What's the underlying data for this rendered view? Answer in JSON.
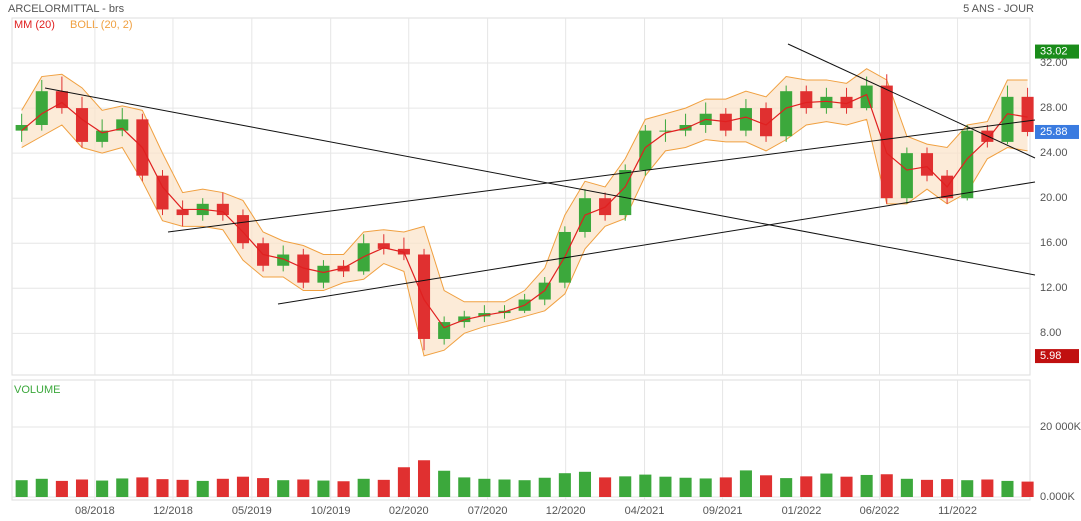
{
  "chart_data": {
    "type": "candlestick",
    "title": "ARCELORMITTAL - brs",
    "period": "5 ANS - JOUR",
    "indicators": [
      {
        "name": "MM (20)",
        "color": "#e02020"
      },
      {
        "name": "BOLL (20, 2)",
        "color": "#f0a040"
      }
    ],
    "xlim": [
      0,
      1265
    ],
    "xticks": [
      {
        "value": 103,
        "label": "08/2018"
      },
      {
        "value": 200,
        "label": "12/2018"
      },
      {
        "value": 298,
        "label": "05/2019"
      },
      {
        "value": 396,
        "label": "10/2019"
      },
      {
        "value": 493,
        "label": "02/2020"
      },
      {
        "value": 591,
        "label": "07/2020"
      },
      {
        "value": 688,
        "label": "12/2020"
      },
      {
        "value": 786,
        "label": "04/2021"
      },
      {
        "value": 883,
        "label": "09/2021"
      },
      {
        "value": 981,
        "label": "01/2022"
      },
      {
        "value": 1078,
        "label": "06/2022"
      },
      {
        "value": 1175,
        "label": "11/2022"
      }
    ],
    "ylim": [
      4.3,
      36
    ],
    "yticks": [
      {
        "value": 8,
        "label": "8.00"
      },
      {
        "value": 12,
        "label": "12.00"
      },
      {
        "value": 16,
        "label": "16.00"
      },
      {
        "value": 20,
        "label": "20.00"
      },
      {
        "value": 24,
        "label": "24.00"
      },
      {
        "value": 28,
        "label": "28.00"
      },
      {
        "value": 32,
        "label": "32.00"
      }
    ],
    "grid": true,
    "up_color": "#3ca83c",
    "down_color": "#e03030",
    "candles": {
      "x": [
        12,
        37,
        62,
        87,
        112,
        137,
        162,
        187,
        212,
        237,
        262,
        287,
        312,
        337,
        362,
        387,
        412,
        437,
        462,
        487,
        512,
        537,
        562,
        587,
        612,
        637,
        662,
        687,
        712,
        737,
        762,
        787,
        812,
        837,
        862,
        887,
        912,
        937,
        962,
        987,
        1012,
        1037,
        1062,
        1087,
        1112,
        1137,
        1162,
        1187,
        1212,
        1237,
        1262
      ],
      "open": [
        26,
        26.5,
        29.5,
        28,
        25,
        26,
        27,
        22,
        19,
        18.5,
        19.5,
        18.5,
        16,
        14,
        15,
        12.5,
        14,
        13.5,
        16,
        15.5,
        15,
        7.5,
        9,
        9.5,
        9.8,
        10,
        11,
        12.5,
        17,
        20,
        18.5,
        22.5,
        26,
        26,
        26.5,
        27.5,
        26,
        28,
        25.5,
        29.5,
        28,
        29,
        28,
        30,
        20,
        24,
        22,
        20,
        26,
        25,
        29
      ],
      "high": [
        27.5,
        30.5,
        30.8,
        29,
        27,
        28,
        27.5,
        22.5,
        19.8,
        20,
        20.5,
        19,
        16.5,
        15.8,
        15.5,
        14.5,
        14.5,
        16.8,
        16.8,
        16.5,
        15.5,
        9.5,
        10,
        10.5,
        10.5,
        11.5,
        13,
        17.5,
        20.8,
        20.5,
        23,
        26.5,
        27,
        27.5,
        28.5,
        28,
        28.8,
        28.5,
        30,
        30,
        29.8,
        29.8,
        30.8,
        31,
        24.5,
        24.5,
        22.5,
        26.5,
        26.5,
        30,
        29.8
      ],
      "low": [
        25,
        26,
        27.5,
        24.5,
        24.5,
        25.5,
        21.5,
        18.5,
        17.5,
        18,
        18,
        15.5,
        13.5,
        13.5,
        12,
        12,
        13,
        13.2,
        15,
        14.5,
        6.5,
        7,
        8.5,
        9,
        9.3,
        9.8,
        10.5,
        12,
        16.5,
        18,
        18,
        22,
        25,
        25.5,
        25.8,
        25.5,
        25.5,
        25,
        25,
        27.5,
        27.5,
        27.5,
        27.8,
        19.5,
        19.5,
        21.5,
        19.5,
        19.8,
        24.5,
        24.8,
        25.5
      ],
      "close": [
        26.5,
        29.5,
        28,
        25,
        26,
        27,
        22,
        19,
        18.5,
        19.5,
        18.5,
        16,
        14,
        15,
        12.5,
        14,
        13.5,
        16,
        15.5,
        15,
        7.5,
        9,
        9.5,
        9.8,
        10,
        11,
        12.5,
        17,
        20,
        18.5,
        22.5,
        26,
        26,
        26.5,
        27.5,
        26,
        28,
        25.5,
        29.5,
        28,
        29,
        28,
        30,
        20,
        24,
        22,
        20,
        26,
        25,
        29,
        25.88
      ],
      "volume": [
        4800,
        5200,
        4600,
        5000,
        4700,
        5300,
        5600,
        5100,
        4900,
        4600,
        5200,
        5800,
        5400,
        4800,
        5000,
        4700,
        4500,
        5200,
        4900,
        8500,
        10500,
        7500,
        5600,
        5200,
        5000,
        4800,
        5500,
        6800,
        7200,
        5600,
        5900,
        6400,
        5800,
        5500,
        5300,
        5600,
        7600,
        6200,
        5400,
        5900,
        6700,
        5800,
        6300,
        6500,
        5200,
        4900,
        5100,
        4800,
        5000,
        4600,
        4400
      ]
    },
    "mm": [
      26,
      27.5,
      28.5,
      27,
      25.8,
      26.2,
      24.5,
      21,
      19,
      19,
      18.8,
      17,
      15,
      14.6,
      13.8,
      13.4,
      13.8,
      14.8,
      15.6,
      15.2,
      11,
      8.5,
      9.2,
      9.6,
      9.9,
      10.5,
      11.8,
      14.8,
      18.5,
      19.2,
      21,
      24.5,
      25.8,
      26.2,
      27,
      26.8,
      27.2,
      26.5,
      28,
      28.5,
      28.6,
      28.4,
      29.2,
      24,
      22.5,
      22.8,
      21,
      23.5,
      25.2,
      27.5,
      27.2
    ],
    "boll_upper": [
      27.8,
      30.8,
      31,
      29.8,
      27.8,
      28.2,
      27.8,
      24,
      20.5,
      20.8,
      20.5,
      19.8,
      17,
      16.2,
      15.8,
      15,
      15,
      17,
      17.2,
      17,
      17.5,
      11.8,
      10.8,
      10.8,
      10.8,
      11.8,
      13.8,
      18.5,
      21.5,
      21,
      23.5,
      27,
      27.5,
      28,
      28.8,
      28.8,
      29.5,
      29,
      30.8,
      30.5,
      30.5,
      30.2,
      31.5,
      30.5,
      25.5,
      24.8,
      24.5,
      26.5,
      26.8,
      30.5,
      30.5
    ],
    "boll_lower": [
      24.5,
      25.5,
      26.5,
      24.5,
      24,
      24.5,
      21.5,
      18,
      17.5,
      17.5,
      17.2,
      14.5,
      13,
      13,
      11.8,
      11.8,
      12.5,
      12.8,
      14.2,
      13.5,
      6,
      6.5,
      8,
      8.6,
      9,
      9.5,
      10,
      11.5,
      15.5,
      17.5,
      18.2,
      22,
      24.2,
      24.5,
      25.2,
      25,
      25,
      24.2,
      25.2,
      26.5,
      26.8,
      26.5,
      27,
      19.5,
      19.5,
      20.8,
      19.5,
      20.5,
      23.5,
      24.5,
      24.2
    ],
    "markers": [
      {
        "value": 33.02,
        "color": "#1a8c1a"
      },
      {
        "value": 25.88,
        "color": "#3a7be0"
      },
      {
        "value": 5.98,
        "color": "#c01010"
      }
    ],
    "volume_panel": {
      "label": "VOLUME",
      "ylim": [
        0,
        33430
      ],
      "yticks": [
        {
          "value": 0,
          "label": "0.000K"
        },
        {
          "value": 20000,
          "label": "20 000K"
        }
      ]
    }
  }
}
